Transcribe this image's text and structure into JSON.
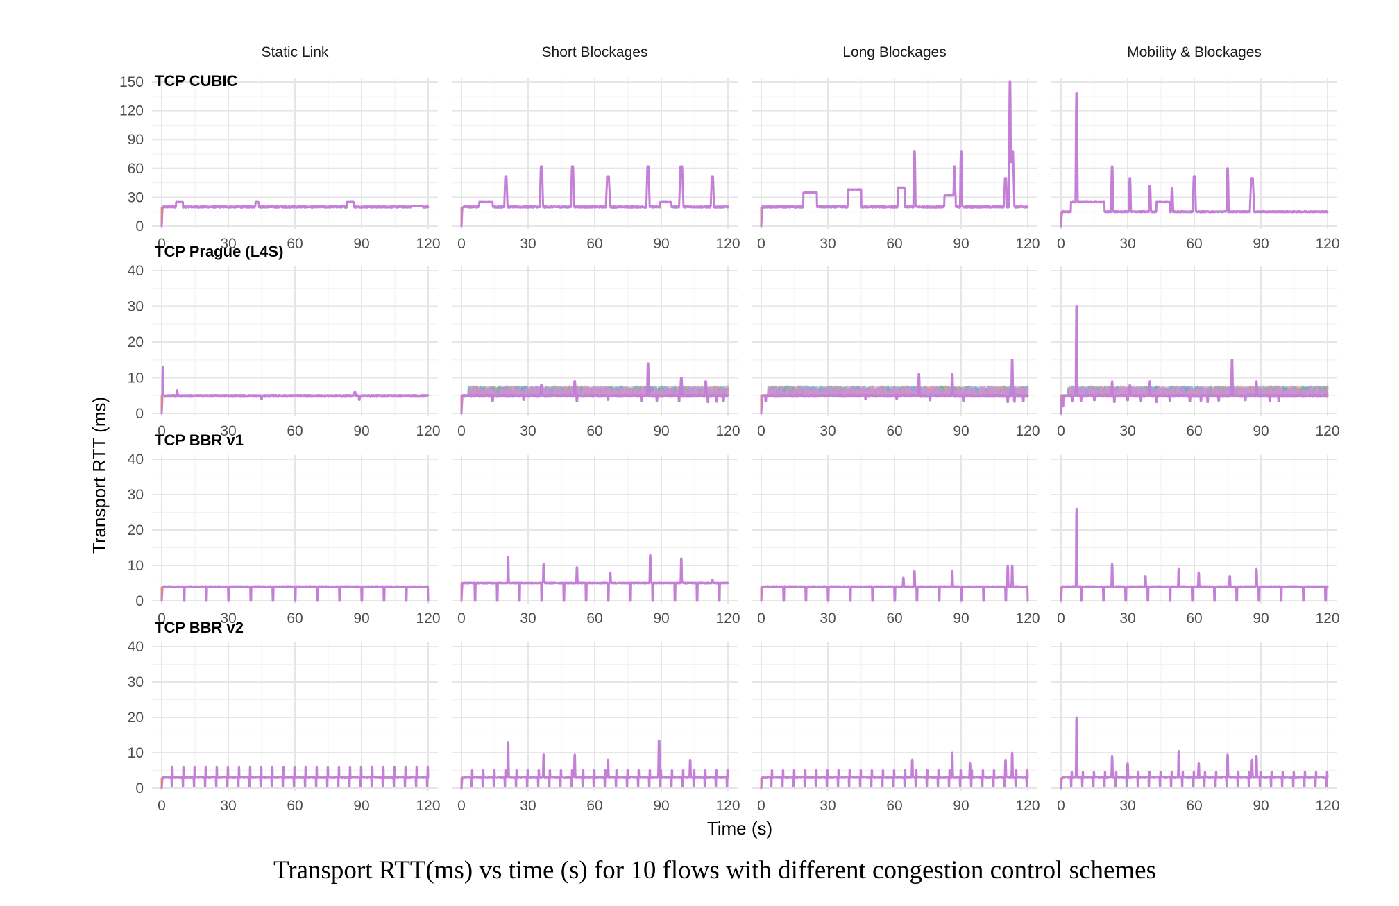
{
  "figure": {
    "caption": "Transport RTT(ms) vs time (s) for 10 flows with different congestion control schemes",
    "xlabel": "Time (s)",
    "ylabel": "Transport RTT (ms)"
  },
  "colors": {
    "series": "#c47fd6",
    "grid": "#e6e6e6",
    "flows": [
      "#e6a02a",
      "#c2a22a",
      "#8fae2a",
      "#4bb35a",
      "#2ab7a0",
      "#3aaed8",
      "#7ea8f0",
      "#b48ff0",
      "#e38ee6",
      "#f08fb8"
    ]
  },
  "chart_data": {
    "type": "line",
    "layout": "facet-grid",
    "columns": [
      "Static Link",
      "Short Blockages",
      "Long Blockages",
      "Mobility & Blockages"
    ],
    "rows": [
      {
        "name": "TCP CUBIC",
        "yticks": [
          0,
          30,
          60,
          90,
          120,
          150
        ],
        "ylim": [
          0,
          150
        ]
      },
      {
        "name": "TCP Prague (L4S)",
        "yticks": [
          0,
          10,
          20,
          30,
          40
        ],
        "ylim": [
          0,
          40
        ]
      },
      {
        "name": "TCP BBR v1",
        "yticks": [
          0,
          10,
          20,
          30,
          40
        ],
        "ylim": [
          0,
          40
        ]
      },
      {
        "name": "TCP BBR v2",
        "yticks": [
          0,
          10,
          20,
          30,
          40
        ],
        "ylim": [
          0,
          40
        ]
      }
    ],
    "xticks": [
      0,
      30,
      60,
      90,
      120
    ],
    "xlim": [
      0,
      120
    ],
    "xlabel": "Time (s)",
    "ylabel": "Transport RTT (ms)",
    "grid": true,
    "flows": 10,
    "panels": [
      [
        {
          "base": 20,
          "noise": 0.8,
          "spikes": [
            [
              8,
              25,
              3,
              "box"
            ],
            [
              43,
              25,
              1.5,
              "box"
            ],
            [
              85,
              25,
              3,
              "box"
            ],
            [
              115,
              21,
              5,
              "box"
            ]
          ]
        },
        {
          "base": 20,
          "noise": 0.8,
          "spikes": [
            [
              11,
              25,
              6,
              "box"
            ],
            [
              20,
              52,
              1.5
            ],
            [
              36,
              62,
              1.5
            ],
            [
              50,
              62,
              1.5
            ],
            [
              66,
              52,
              2
            ],
            [
              84,
              62,
              1.5
            ],
            [
              99,
              62,
              2
            ],
            [
              113,
              52,
              1.5
            ],
            [
              92,
              25,
              5,
              "box"
            ]
          ]
        },
        {
          "base": 20,
          "noise": 0.8,
          "spikes": [
            [
              22,
              35,
              6,
              "box"
            ],
            [
              42,
              38,
              6,
              "box"
            ],
            [
              63,
              40,
              3,
              "box"
            ],
            [
              69,
              78,
              1
            ],
            [
              87,
              62,
              1
            ],
            [
              90,
              78,
              1
            ],
            [
              112,
              150,
              1
            ],
            [
              113,
              78,
              2
            ],
            [
              110,
              50,
              1.5
            ],
            [
              85,
              32,
              5,
              "box"
            ]
          ]
        },
        {
          "base": 15,
          "noise": 0.6,
          "spikes": [
            [
              7,
              138,
              1
            ],
            [
              23,
              62,
              1
            ],
            [
              31,
              50,
              1
            ],
            [
              40,
              42,
              1
            ],
            [
              50,
              40,
              1
            ],
            [
              60,
              52,
              1.5
            ],
            [
              75,
              60,
              1
            ],
            [
              86,
              50,
              2
            ],
            [
              12,
              25,
              15,
              "box"
            ],
            [
              46,
              25,
              6,
              "box"
            ]
          ]
        }
      ],
      [
        {
          "base": 5,
          "noise": 0.15,
          "spikes": [
            [
              0.5,
              13,
              0.5
            ],
            [
              7,
              6.5,
              0.5
            ],
            [
              87,
              6,
              1
            ]
          ],
          "dips": [
            [
              45,
              4
            ],
            [
              89,
              3.8
            ]
          ]
        },
        {
          "base": 5,
          "noise": 0.15,
          "spikes": [
            [
              36,
              8,
              1
            ],
            [
              51,
              9,
              1
            ],
            [
              84,
              14,
              0.8
            ],
            [
              99,
              10,
              1
            ],
            [
              110,
              9,
              1
            ]
          ],
          "dips": [
            [
              14,
              3.5
            ],
            [
              28,
              3.8
            ],
            [
              52,
              3.4
            ],
            [
              66,
              3.8
            ],
            [
              81,
              3.5
            ],
            [
              88,
              3.6
            ],
            [
              98,
              3.4
            ],
            [
              111,
              3.2
            ],
            [
              115,
              3.3
            ],
            [
              118,
              3.4
            ]
          ],
          "colorflows": true
        },
        {
          "base": 5,
          "noise": 0.15,
          "spikes": [
            [
              71,
              11,
              0.8
            ],
            [
              86,
              11,
              0.8
            ],
            [
              113,
              15,
              0.8
            ]
          ],
          "dips": [
            [
              2,
              3.5
            ],
            [
              47,
              4
            ],
            [
              61,
              4.1
            ],
            [
              76,
              3.7
            ],
            [
              91,
              3.5
            ],
            [
              111,
              3.2
            ],
            [
              114,
              3.3
            ],
            [
              118,
              3.4
            ]
          ],
          "colorflows": true
        },
        {
          "base": 5,
          "noise": 0.15,
          "spikes": [
            [
              7,
              30,
              0.8
            ],
            [
              23,
              9,
              0.6
            ],
            [
              31,
              8,
              0.6
            ],
            [
              40,
              9,
              0.6
            ],
            [
              77,
              15,
              0.8
            ],
            [
              88,
              9,
              0.6
            ]
          ],
          "dips": [
            [
              0.8,
              2
            ],
            [
              5,
              3.4
            ],
            [
              9,
              3.6
            ],
            [
              15,
              3.7
            ],
            [
              24,
              3.2
            ],
            [
              30,
              3.7
            ],
            [
              36,
              3.6
            ],
            [
              43,
              3.2
            ],
            [
              49,
              3.5
            ],
            [
              58,
              3.4
            ],
            [
              63,
              3.6
            ],
            [
              66,
              3.2
            ],
            [
              71,
              3.6
            ],
            [
              77,
              3.3
            ],
            [
              83,
              3.7
            ],
            [
              88,
              2.8
            ],
            [
              94,
              3.5
            ],
            [
              98,
              3.4
            ]
          ],
          "colorflows": true
        }
      ],
      [
        {
          "base": 4,
          "noise": 0.12,
          "dipsEvery": 10,
          "dipDepth": 0,
          "dipStart": 10
        },
        {
          "base": 5,
          "noise": 0.12,
          "spikes": [
            [
              21,
              12.5,
              0.6
            ],
            [
              37,
              10.5,
              0.6
            ],
            [
              52,
              9.5,
              0.6
            ],
            [
              67,
              8,
              0.6
            ],
            [
              85,
              13,
              0.6
            ],
            [
              99,
              12,
              0.6
            ],
            [
              113,
              6,
              0.6
            ]
          ],
          "dipsEvery": 10,
          "dipDepth": 0,
          "dipStart": 6
        },
        {
          "base": 4,
          "noise": 0.12,
          "spikes": [
            [
              64,
              6.5,
              0.6
            ],
            [
              69,
              8.5,
              0.6
            ],
            [
              86,
              8.5,
              0.6
            ],
            [
              111,
              10,
              0.6
            ],
            [
              113,
              10,
              0.6
            ]
          ],
          "dipsEvery": 10,
          "dipDepth": 0,
          "dipStart": 10
        },
        {
          "base": 4,
          "noise": 0.12,
          "spikes": [
            [
              7,
              26,
              0.6
            ],
            [
              23,
              10.5,
              0.6
            ],
            [
              38,
              7,
              0.6
            ],
            [
              53,
              9,
              0.6
            ],
            [
              62,
              8,
              0.6
            ],
            [
              76,
              7,
              0.6
            ],
            [
              88,
              9,
              0.6
            ]
          ],
          "dipsEvery": 10,
          "dipDepth": 0,
          "dipStart": 9
        }
      ],
      [
        {
          "base": 3,
          "noise": 0.15,
          "comb": 5,
          "combTop": 6,
          "combBottom": 0.5
        },
        {
          "base": 3,
          "noise": 0.15,
          "comb": 5,
          "combTop": 5,
          "combBottom": 0.5,
          "spikes": [
            [
              21,
              13,
              0.6
            ],
            [
              37,
              9.5,
              0.6
            ],
            [
              51,
              9.5,
              0.6
            ],
            [
              66,
              8,
              0.6
            ],
            [
              89,
              13.5,
              0.8
            ],
            [
              103,
              8,
              0.6
            ]
          ]
        },
        {
          "base": 3,
          "noise": 0.15,
          "comb": 5,
          "combTop": 5,
          "combBottom": 0.5,
          "spikes": [
            [
              68,
              8,
              0.6
            ],
            [
              86,
              10,
              0.6
            ],
            [
              94,
              7,
              0.6
            ],
            [
              110,
              8,
              0.6
            ],
            [
              113,
              10,
              0.6
            ]
          ]
        },
        {
          "base": 3,
          "noise": 0.15,
          "comb": 5,
          "combTop": 4.5,
          "combBottom": 0.5,
          "spikes": [
            [
              7,
              20,
              0.6
            ],
            [
              23,
              9,
              0.6
            ],
            [
              30,
              7,
              0.6
            ],
            [
              53,
              10.5,
              0.6
            ],
            [
              62,
              7,
              0.6
            ],
            [
              75,
              9.5,
              0.6
            ],
            [
              86,
              8,
              0.6
            ],
            [
              88,
              9,
              0.6
            ]
          ]
        }
      ]
    ]
  }
}
